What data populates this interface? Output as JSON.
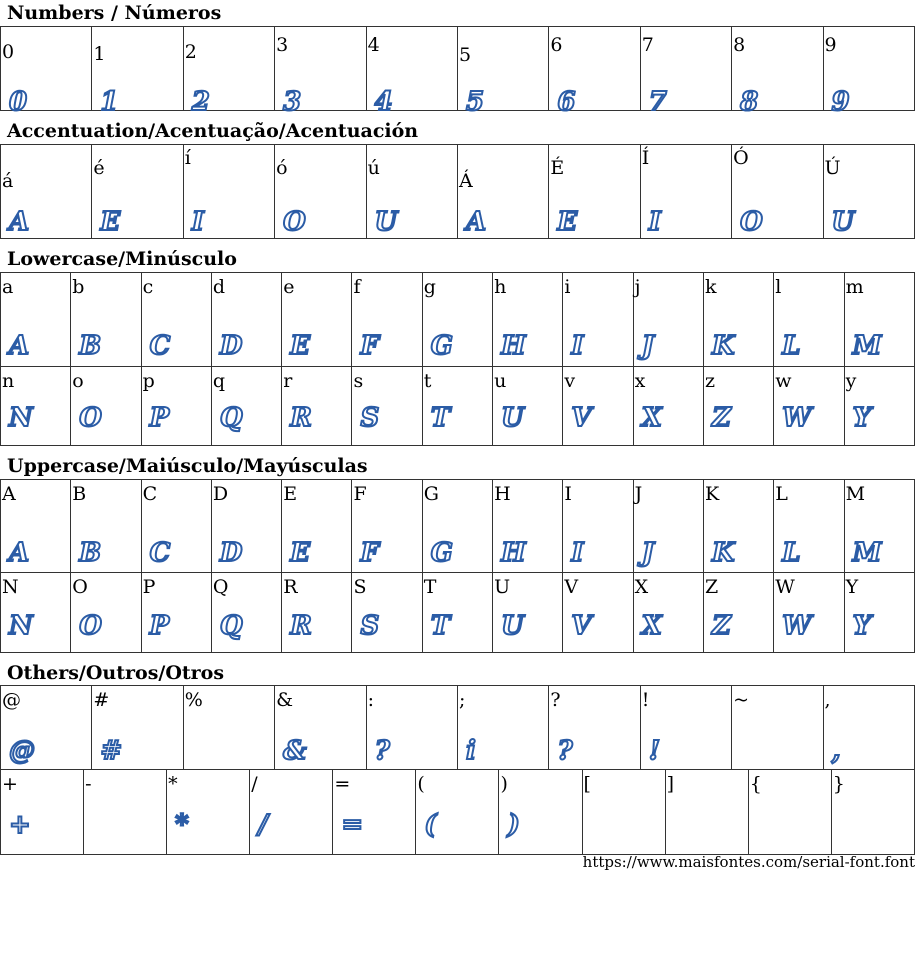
{
  "sections": [
    {
      "title": "Numbers / Números",
      "rows": [
        [
          {
            "c": "0",
            "g": "0"
          },
          {
            "c": "1",
            "g": "1"
          },
          {
            "c": "2",
            "g": "2"
          },
          {
            "c": "3",
            "g": "3"
          },
          {
            "c": "4",
            "g": "4"
          },
          {
            "c": "5",
            "g": "5"
          },
          {
            "c": "6",
            "g": "6"
          },
          {
            "c": "7",
            "g": "7"
          },
          {
            "c": "8",
            "g": "8"
          },
          {
            "c": "9",
            "g": "9"
          }
        ]
      ]
    },
    {
      "title": "Accentuation/Acentuação/Acentuación",
      "rows": [
        [
          {
            "c": "á",
            "g": "A"
          },
          {
            "c": "é",
            "g": "E"
          },
          {
            "c": "í",
            "g": "I"
          },
          {
            "c": "ó",
            "g": "O"
          },
          {
            "c": "ú",
            "g": "U"
          },
          {
            "c": "Á",
            "g": "A"
          },
          {
            "c": "É",
            "g": "E"
          },
          {
            "c": "Í",
            "g": "I"
          },
          {
            "c": "Ó",
            "g": "O"
          },
          {
            "c": "Ú",
            "g": "U"
          }
        ]
      ]
    },
    {
      "title": "Lowercase/Minúsculo",
      "rows": [
        [
          {
            "c": "a",
            "g": "A"
          },
          {
            "c": "b",
            "g": "B"
          },
          {
            "c": "c",
            "g": "C"
          },
          {
            "c": "d",
            "g": "D"
          },
          {
            "c": "e",
            "g": "E"
          },
          {
            "c": "f",
            "g": "F"
          },
          {
            "c": "g",
            "g": "G"
          },
          {
            "c": "h",
            "g": "H"
          },
          {
            "c": "i",
            "g": "I"
          },
          {
            "c": "j",
            "g": "J"
          },
          {
            "c": "k",
            "g": "K"
          },
          {
            "c": "l",
            "g": "L"
          },
          {
            "c": "m",
            "g": "M"
          }
        ],
        [
          {
            "c": "n",
            "g": "N"
          },
          {
            "c": "o",
            "g": "O"
          },
          {
            "c": "p",
            "g": "P"
          },
          {
            "c": "q",
            "g": "Q"
          },
          {
            "c": "r",
            "g": "R"
          },
          {
            "c": "s",
            "g": "S"
          },
          {
            "c": "t",
            "g": "T"
          },
          {
            "c": "u",
            "g": "U"
          },
          {
            "c": "v",
            "g": "V"
          },
          {
            "c": "x",
            "g": "X"
          },
          {
            "c": "z",
            "g": "Z"
          },
          {
            "c": "w",
            "g": "W"
          },
          {
            "c": "y",
            "g": "Y"
          }
        ]
      ]
    },
    {
      "title": "Uppercase/Maiúsculo/Mayúsculas",
      "rows": [
        [
          {
            "c": "A",
            "g": "A"
          },
          {
            "c": "B",
            "g": "B"
          },
          {
            "c": "C",
            "g": "C"
          },
          {
            "c": "D",
            "g": "D"
          },
          {
            "c": "E",
            "g": "E"
          },
          {
            "c": "F",
            "g": "F"
          },
          {
            "c": "G",
            "g": "G"
          },
          {
            "c": "H",
            "g": "H"
          },
          {
            "c": "I",
            "g": "I"
          },
          {
            "c": "J",
            "g": "J"
          },
          {
            "c": "K",
            "g": "K"
          },
          {
            "c": "L",
            "g": "L"
          },
          {
            "c": "M",
            "g": "M"
          }
        ],
        [
          {
            "c": "N",
            "g": "N"
          },
          {
            "c": "O",
            "g": "O"
          },
          {
            "c": "P",
            "g": "P"
          },
          {
            "c": "Q",
            "g": "Q"
          },
          {
            "c": "R",
            "g": "R"
          },
          {
            "c": "S",
            "g": "S"
          },
          {
            "c": "T",
            "g": "T"
          },
          {
            "c": "U",
            "g": "U"
          },
          {
            "c": "V",
            "g": "V"
          },
          {
            "c": "X",
            "g": "X"
          },
          {
            "c": "Z",
            "g": "Z"
          },
          {
            "c": "W",
            "g": "W"
          },
          {
            "c": "Y",
            "g": "Y"
          }
        ]
      ]
    },
    {
      "title": "Others/Outros/Otros",
      "rows": [
        [
          {
            "c": "@",
            "g": "@"
          },
          {
            "c": "#",
            "g": "#"
          },
          {
            "c": "%",
            "g": ""
          },
          {
            "c": "&",
            "g": "&"
          },
          {
            "c": ":",
            "g": "?"
          },
          {
            "c": ";",
            "g": "i"
          },
          {
            "c": "?",
            "g": "?"
          },
          {
            "c": "!",
            "g": "!"
          },
          {
            "c": "~",
            "g": ""
          },
          {
            "c": ",",
            "g": ","
          }
        ],
        [
          {
            "c": "+",
            "g": "+"
          },
          {
            "c": "-",
            "g": ""
          },
          {
            "c": "*",
            "g": "*"
          },
          {
            "c": "/",
            "g": "/"
          },
          {
            "c": "=",
            "g": "="
          },
          {
            "c": "(",
            "g": "("
          },
          {
            "c": ")",
            "g": ")"
          },
          {
            "c": "[",
            "g": ""
          },
          {
            "c": "]",
            "g": ""
          },
          {
            "c": "{",
            "g": ""
          },
          {
            "c": "}",
            "g": ""
          }
        ]
      ]
    }
  ],
  "footer_url": "https://www.maisfontes.com/serial-font.font",
  "glyph_color": "#2b5ca6"
}
